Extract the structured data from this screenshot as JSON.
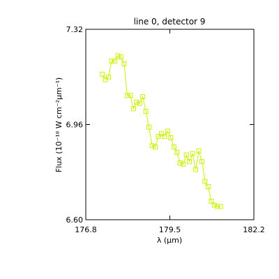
{
  "chart_data": {
    "type": "line",
    "title": "line 0, detector 9",
    "xlabel": "λ (μm)",
    "ylabel": "Flux (10⁻¹⁸ W cm⁻²μm⁻¹)",
    "xlim": [
      176.8,
      182.2
    ],
    "ylim": [
      6.6,
      7.32
    ],
    "xticks": [
      "176.8",
      "179.5",
      "182.2"
    ],
    "yticks": [
      "6.60",
      "6.96",
      "7.32"
    ],
    "grid": false,
    "series_color": "#ccf000",
    "marker": "open-square",
    "x": [
      177.33,
      177.43,
      177.53,
      177.63,
      177.73,
      177.83,
      177.93,
      178.03,
      178.13,
      178.23,
      178.33,
      178.43,
      178.53,
      178.63,
      178.73,
      178.83,
      178.93,
      179.03,
      179.13,
      179.23,
      179.33,
      179.43,
      179.53,
      179.63,
      179.73,
      179.83,
      179.93,
      180.03,
      180.13,
      180.23,
      180.33,
      180.43,
      180.53,
      180.63,
      180.73,
      180.83,
      180.93,
      181.03,
      181.13
    ],
    "y": [
      7.15,
      7.13,
      7.14,
      7.2,
      7.2,
      7.22,
      7.215,
      7.19,
      7.07,
      7.07,
      7.02,
      7.045,
      7.04,
      7.065,
      7.01,
      6.95,
      6.88,
      6.875,
      6.915,
      6.925,
      6.915,
      6.935,
      6.91,
      6.875,
      6.855,
      6.815,
      6.81,
      6.845,
      6.82,
      6.85,
      6.79,
      6.86,
      6.82,
      6.745,
      6.725,
      6.67,
      6.655,
      6.65,
      6.65
    ]
  }
}
